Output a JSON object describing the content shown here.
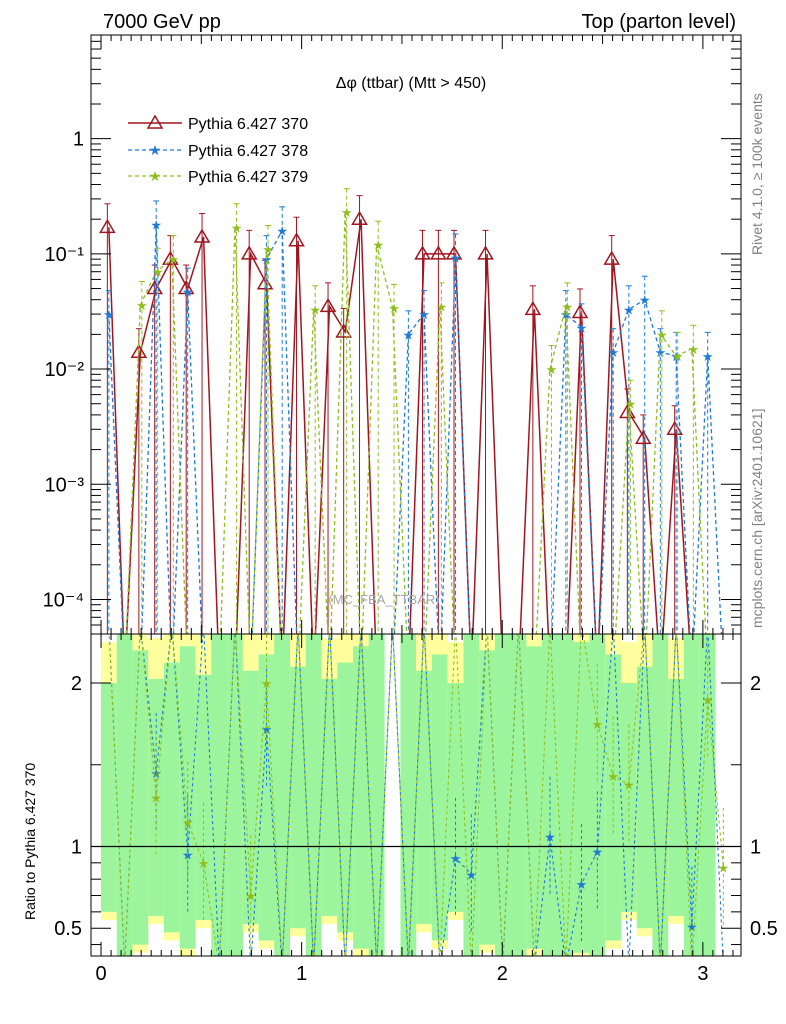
{
  "header": {
    "left": "7000 GeV pp",
    "right": "Top (parton level)"
  },
  "side_labels": {
    "rivet": "Rivet 4.1.0, ≥ 100k events",
    "mcplots": "mcplots.cern.ch [arXiv:2401.10621]"
  },
  "watermark": "(MC_FBA_TTBAR)",
  "colors": {
    "s370": "#a0151f",
    "s378": "#1f7ad6",
    "s379": "#8fbf1f",
    "band_green": "#9cf59c",
    "band_yellow": "#ffff9e"
  },
  "chart_data": {
    "type": "line",
    "title": "Δφ (ttbar) (Mtt > 450)",
    "xlabel": "",
    "ylabel_main": "",
    "ylabel_ratio": "Ratio to Pythia 6.427 370",
    "xlim": [
      -0.05,
      3.19
    ],
    "ylim_main_log10": [
      -4.3,
      0.9
    ],
    "ylim_ratio": [
      0.33,
      2.3
    ],
    "x_ticks": [
      "0",
      "1",
      "2",
      "3"
    ],
    "y_ticks_main": [
      "10⁻⁴",
      "10⁻³",
      "10⁻²",
      "10⁻¹",
      "1"
    ],
    "y_ticks_ratio": [
      "0.5",
      "1",
      "2"
    ],
    "legend": [
      "Pythia 6.427 370",
      "Pythia 6.427 378",
      "Pythia 6.427 379"
    ],
    "x": [
      0.039,
      0.118,
      0.196,
      0.275,
      0.353,
      0.432,
      0.511,
      0.589,
      0.668,
      0.746,
      0.825,
      0.903,
      0.982,
      1.06,
      1.139,
      1.217,
      1.296,
      1.374,
      1.453,
      1.532,
      1.61,
      1.689,
      1.767,
      1.846,
      1.924,
      2.003,
      2.081,
      2.16,
      2.238,
      2.317,
      2.395,
      2.474,
      2.553,
      2.631,
      2.71,
      2.788,
      2.867,
      2.945,
      3.024,
      3.102
    ],
    "series": [
      {
        "name": "Pythia 6.427 370",
        "marker": "open-triangle",
        "values": [
          0.17,
          0,
          0.014,
          0.05,
          0.09,
          0.05,
          0.14,
          0,
          0,
          0.1,
          0.055,
          0,
          0.13,
          0,
          0.035,
          0.021,
          0.2,
          0,
          0,
          0,
          0.1,
          0.1,
          0.1,
          0,
          0.1,
          0,
          0,
          0.033,
          0,
          0,
          0.031,
          0,
          0.09,
          0.0042,
          0.0025,
          0,
          0.003,
          0,
          0,
          0
        ],
        "ratio": []
      },
      {
        "name": "Pythia 6.427 378",
        "marker": "star",
        "values": [
          0.03,
          0,
          0,
          0.18,
          0,
          0.047,
          0,
          0,
          0,
          0,
          0.09,
          0.16,
          0,
          0,
          0,
          0,
          0,
          0,
          0,
          0.02,
          0.03,
          0,
          0.093,
          0,
          0,
          0,
          0,
          0,
          0,
          0.03,
          0.023,
          0,
          0.014,
          0.033,
          0.04,
          0.014,
          0.013,
          0,
          0.013,
          0
        ],
        "ratio": [
          null,
          null,
          null,
          1.45,
          null,
          0.95,
          null,
          null,
          null,
          null,
          1.72,
          null,
          null,
          null,
          null,
          null,
          null,
          null,
          null,
          null,
          null,
          null,
          0.93,
          0.83,
          null,
          null,
          null,
          null,
          1.06,
          null,
          0.77,
          0.97,
          null,
          null,
          null,
          null,
          null,
          0.51,
          null,
          null
        ]
      },
      {
        "name": "Pythia 6.427 379",
        "marker": "star",
        "values": [
          0,
          0,
          0.036,
          0.07,
          0.09,
          0,
          0,
          0,
          0.17,
          0,
          0.11,
          0,
          0,
          0.033,
          0,
          0.23,
          0,
          0.12,
          0.034,
          0,
          0,
          0.035,
          0,
          0,
          0,
          0,
          0,
          0,
          0.01,
          0.035,
          0,
          0,
          0,
          0.005,
          0,
          0.02,
          0.013,
          0.015,
          0,
          0
        ],
        "ratio": [
          null,
          null,
          null,
          1.3,
          null,
          1.15,
          0.9,
          null,
          null,
          0.7,
          2.0,
          null,
          null,
          null,
          null,
          null,
          null,
          null,
          null,
          null,
          null,
          null,
          null,
          null,
          null,
          null,
          null,
          null,
          null,
          null,
          null,
          1.75,
          1.43,
          1.38,
          null,
          null,
          null,
          null,
          1.9,
          0.87
        ]
      }
    ]
  }
}
